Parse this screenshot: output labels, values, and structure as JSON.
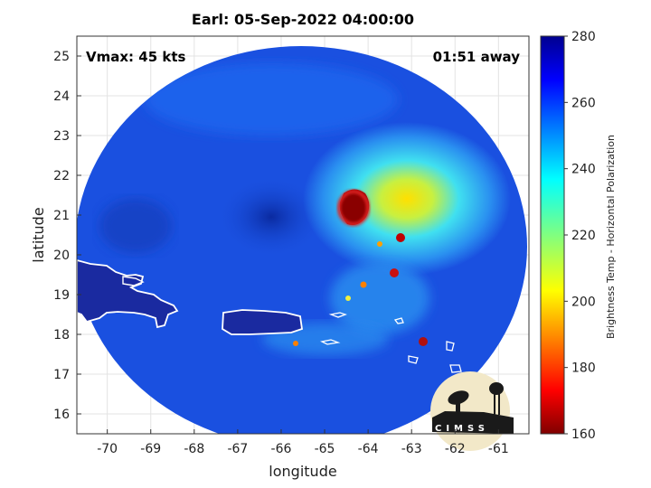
{
  "title": "Earl: 05-Sep-2022 04:00:00",
  "annotations": {
    "vmax": "Vmax: 45 kts",
    "time_away": "01:51 away"
  },
  "axes": {
    "xlabel": "longitude",
    "ylabel": "latitude",
    "xlim": [
      -70.7,
      -60.3
    ],
    "ylim": [
      15.5,
      25.5
    ],
    "xticks": [
      "-70",
      "-69",
      "-68",
      "-67",
      "-66",
      "-65",
      "-64",
      "-63",
      "-62",
      "-61"
    ],
    "yticks": [
      "16",
      "17",
      "18",
      "19",
      "20",
      "21",
      "22",
      "23",
      "24",
      "25"
    ]
  },
  "colorbar": {
    "label": "Brightness Temp - Horizontal Polarization",
    "ticks": [
      "160",
      "180",
      "200",
      "220",
      "240",
      "260",
      "280"
    ],
    "range": [
      160,
      280
    ],
    "colormap": "jet"
  },
  "logo": {
    "text": "CIMSS"
  },
  "colors": {
    "background_scene": "#1a50e0",
    "land_outline": "#ffffff",
    "core": "#8a0000"
  }
}
